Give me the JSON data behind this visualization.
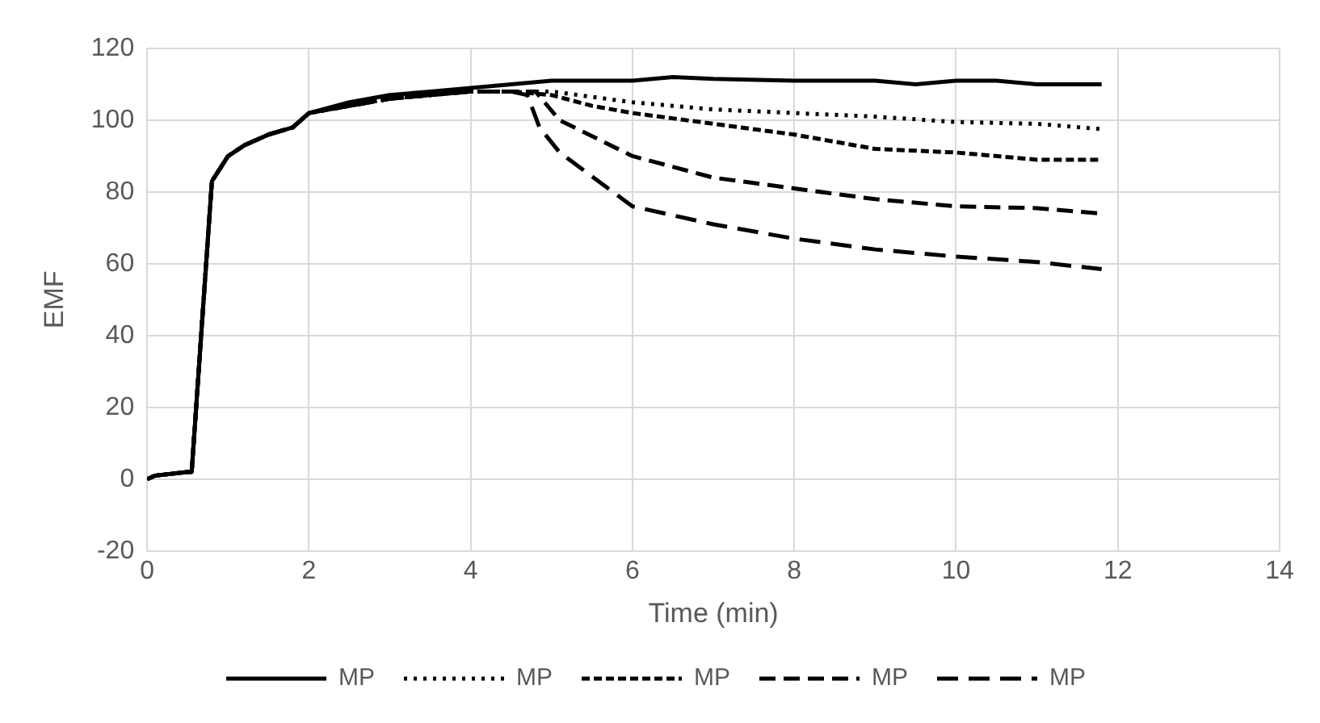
{
  "chart_data": {
    "type": "line",
    "xlabel": "Time (min)",
    "ylabel": "EMF",
    "xlim": [
      0,
      14
    ],
    "xticks": [
      0,
      2,
      4,
      6,
      8,
      10,
      12,
      14
    ],
    "ylim": [
      -20,
      120
    ],
    "yticks": [
      -20,
      0,
      20,
      40,
      60,
      80,
      100,
      120
    ],
    "grid": true,
    "legend": "bottom",
    "marker": "none",
    "series": [
      {
        "name": "MP",
        "color": "#000000",
        "line_style": "solid",
        "x": [
          0,
          0.1,
          0.5,
          0.55,
          0.8,
          1.0,
          1.2,
          1.5,
          1.8,
          2.0,
          2.5,
          3.0,
          3.5,
          4.0,
          4.5,
          5,
          6,
          6.5,
          7,
          8,
          9,
          9.5,
          10,
          10.5,
          11,
          11.8
        ],
        "values": [
          0,
          1,
          2,
          2,
          83,
          90,
          93,
          96,
          98,
          102,
          105,
          107,
          108,
          109,
          110,
          111,
          111,
          112,
          111.5,
          111,
          111,
          110,
          111,
          111,
          110,
          110
        ]
      },
      {
        "name": "MP",
        "color": "#000000",
        "line_style": "dotted",
        "x": [
          0,
          0.1,
          0.5,
          0.55,
          0.8,
          1.0,
          1.2,
          1.5,
          1.8,
          2.0,
          2.5,
          3.0,
          3.5,
          4.0,
          4.5,
          5,
          6,
          7,
          8,
          9,
          10,
          11,
          11.8
        ],
        "values": [
          0,
          1,
          2,
          2,
          83,
          90,
          93,
          96,
          98,
          102,
          104,
          106,
          107,
          108,
          108,
          108,
          105,
          103,
          102,
          101,
          99.5,
          99,
          97.5
        ]
      },
      {
        "name": "MP",
        "color": "#000000",
        "line_style": "dashed",
        "x": [
          0,
          0.1,
          0.5,
          0.55,
          0.8,
          1.0,
          1.2,
          1.5,
          1.8,
          2.0,
          2.5,
          3.0,
          3.5,
          4.0,
          4.5,
          5,
          5.5,
          6,
          7,
          8,
          9,
          10,
          11,
          11.8
        ],
        "values": [
          0,
          1,
          2,
          2,
          83,
          90,
          93,
          96,
          98,
          102,
          104,
          106,
          107,
          108,
          108,
          107,
          104,
          102,
          99,
          96,
          92,
          91,
          89,
          89
        ]
      },
      {
        "name": "MP",
        "color": "#000000",
        "line_style": "dashed",
        "x": [
          0,
          0.1,
          0.5,
          0.55,
          0.8,
          1.0,
          1.2,
          1.5,
          1.8,
          2.0,
          2.5,
          3.0,
          3.5,
          4.0,
          4.5,
          4.8,
          5.1,
          6,
          7,
          8,
          9,
          10,
          11,
          11.8
        ],
        "values": [
          0,
          1,
          2,
          2,
          83,
          90,
          93,
          96,
          98,
          102,
          104,
          106,
          107,
          108,
          108,
          108,
          100,
          90,
          84,
          81,
          78,
          76,
          75.5,
          74
        ]
      },
      {
        "name": "MP",
        "color": "#000000",
        "line_style": "dashed",
        "x": [
          0,
          0.1,
          0.5,
          0.55,
          0.8,
          1.0,
          1.2,
          1.5,
          1.8,
          2.0,
          2.5,
          3.0,
          3.5,
          4.0,
          4.5,
          4.7,
          4.85,
          5.1,
          6,
          7,
          8,
          9,
          10,
          11,
          11.8
        ],
        "values": [
          0,
          1,
          2,
          2,
          83,
          90,
          93,
          96,
          98,
          102,
          104,
          106,
          107,
          108,
          108,
          107,
          98,
          91,
          76,
          71,
          67,
          64,
          62,
          60.5,
          58.5
        ]
      }
    ]
  }
}
